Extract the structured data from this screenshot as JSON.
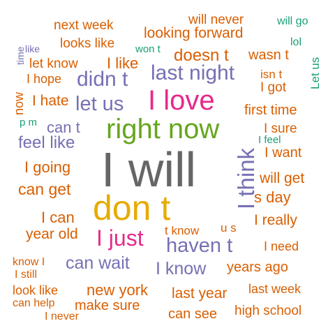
{
  "palette": {
    "orange": "#d95f02",
    "purple": "#7570b3",
    "pink": "#e7298a",
    "green": "#66a61e",
    "gold": "#e6ab02",
    "gray": "#666666",
    "teal": "#1b9e77"
  },
  "words": [
    {
      "text": "I will",
      "color": "gray"
    },
    {
      "text": "don t",
      "color": "gold"
    },
    {
      "text": "right now",
      "color": "green"
    },
    {
      "text": "I love",
      "color": "pink"
    },
    {
      "text": "last night",
      "color": "purple"
    },
    {
      "text": "let us",
      "color": "purple"
    },
    {
      "text": "didn t",
      "color": "purple"
    },
    {
      "text": "haven t",
      "color": "purple"
    },
    {
      "text": "I just",
      "color": "pink"
    },
    {
      "text": "I think",
      "color": "purple"
    },
    {
      "text": "can wait",
      "color": "purple"
    },
    {
      "text": "I know",
      "color": "purple"
    },
    {
      "text": "feel like",
      "color": "purple"
    },
    {
      "text": "can t",
      "color": "purple"
    },
    {
      "text": "doesn t",
      "color": "orange"
    },
    {
      "text": "looking forward",
      "color": "orange"
    },
    {
      "text": "next week",
      "color": "orange"
    },
    {
      "text": "will never",
      "color": "orange"
    },
    {
      "text": "will go",
      "color": "teal"
    },
    {
      "text": "looks like",
      "color": "orange"
    },
    {
      "text": "won t",
      "color": "teal"
    },
    {
      "text": "wasn t",
      "color": "orange"
    },
    {
      "text": "lol",
      "color": "teal"
    },
    {
      "text": "like",
      "color": "purple"
    },
    {
      "text": "let know",
      "color": "orange"
    },
    {
      "text": "I like",
      "color": "orange"
    },
    {
      "text": "isn t",
      "color": "orange"
    },
    {
      "text": "Let us",
      "color": "teal"
    },
    {
      "text": "time",
      "color": "purple"
    },
    {
      "text": "I hope",
      "color": "orange"
    },
    {
      "text": "I got",
      "color": "orange"
    },
    {
      "text": "now",
      "color": "orange"
    },
    {
      "text": "I hate",
      "color": "orange"
    },
    {
      "text": "first time",
      "color": "orange"
    },
    {
      "text": "p m",
      "color": "teal"
    },
    {
      "text": "I sure",
      "color": "orange"
    },
    {
      "text": "I feel",
      "color": "teal"
    },
    {
      "text": "I want",
      "color": "orange"
    },
    {
      "text": "I going",
      "color": "orange"
    },
    {
      "text": "will get",
      "color": "orange"
    },
    {
      "text": "can get",
      "color": "orange"
    },
    {
      "text": "s day",
      "color": "orange"
    },
    {
      "text": "I can",
      "color": "orange"
    },
    {
      "text": "I really",
      "color": "orange"
    },
    {
      "text": "year old",
      "color": "orange"
    },
    {
      "text": "t know",
      "color": "orange"
    },
    {
      "text": "u s",
      "color": "orange"
    },
    {
      "text": "I need",
      "color": "orange"
    },
    {
      "text": "know I",
      "color": "orange"
    },
    {
      "text": "years ago",
      "color": "orange"
    },
    {
      "text": "I still",
      "color": "orange"
    },
    {
      "text": "new york",
      "color": "orange"
    },
    {
      "text": "look like",
      "color": "orange"
    },
    {
      "text": "last year",
      "color": "orange"
    },
    {
      "text": "last week",
      "color": "orange"
    },
    {
      "text": "can help",
      "color": "orange"
    },
    {
      "text": "make sure",
      "color": "orange"
    },
    {
      "text": "I never",
      "color": "orange"
    },
    {
      "text": "can see",
      "color": "orange"
    },
    {
      "text": "high school",
      "color": "orange"
    }
  ]
}
